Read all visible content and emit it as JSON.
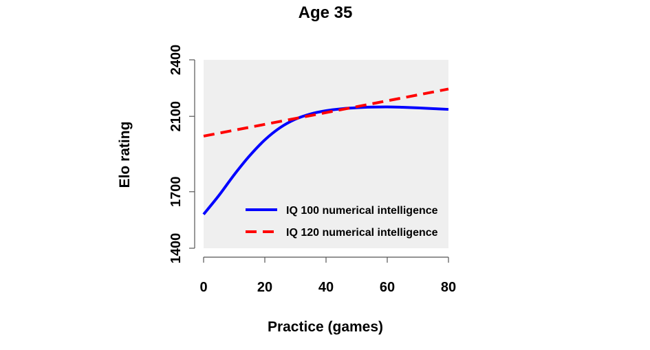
{
  "chart_data": {
    "type": "line",
    "title": "Age 35",
    "xlabel": "Practice (games)",
    "ylabel": "Elo rating",
    "xlim": [
      0,
      80
    ],
    "ylim": [
      1400,
      2400
    ],
    "x_ticks": [
      0,
      20,
      40,
      60,
      80
    ],
    "y_ticks": [
      1400,
      1700,
      2100,
      2400
    ],
    "x_tick_labels": [
      "0",
      "20",
      "40",
      "60",
      "80"
    ],
    "y_tick_labels": [
      "1400",
      "1700",
      "2100",
      "2400"
    ],
    "grid": false,
    "plot_background": "#efefef",
    "legend_position": "bottom-right",
    "series": [
      {
        "name": "IQ 100 numerical intelligence",
        "color": "#0000ff",
        "style": "solid",
        "x": [
          0,
          5,
          10,
          15,
          20,
          25,
          30,
          35,
          40,
          45,
          50,
          55,
          60,
          65,
          70,
          75,
          80
        ],
        "y": [
          1580,
          1680,
          1790,
          1890,
          1975,
          2040,
          2085,
          2113,
          2130,
          2140,
          2146,
          2149,
          2150,
          2148,
          2145,
          2141,
          2137
        ]
      },
      {
        "name": "IQ 120 numerical intelligence",
        "color": "#ff0000",
        "style": "dashed",
        "x": [
          0,
          80
        ],
        "y": [
          1995,
          2245
        ]
      }
    ]
  }
}
